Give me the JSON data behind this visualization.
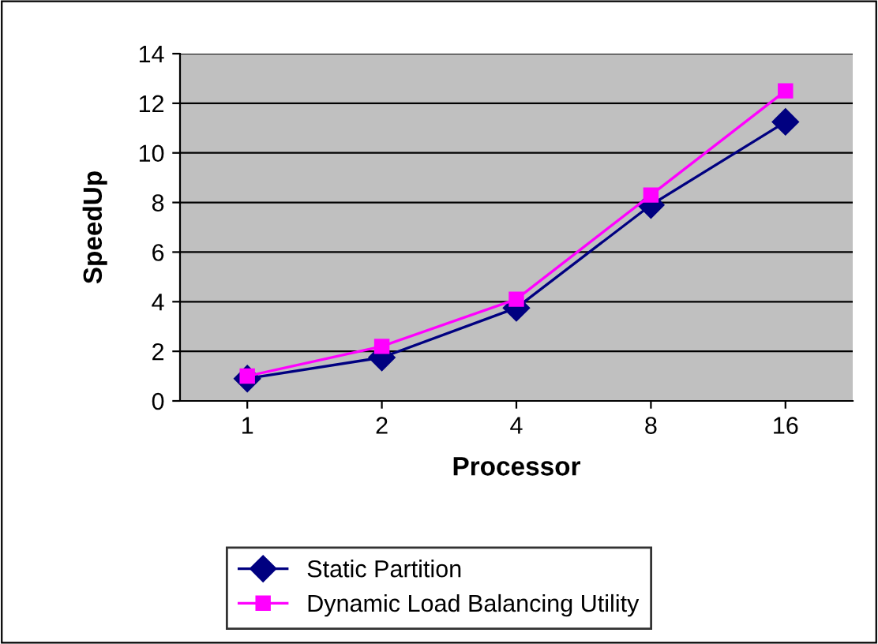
{
  "chart_data": {
    "type": "line",
    "xlabel": "Processor",
    "ylabel": "SpeedUp",
    "categories": [
      "1",
      "2",
      "4",
      "8",
      "16"
    ],
    "series": [
      {
        "name": "Static Partition",
        "color": "#000080",
        "values": [
          0.9,
          1.75,
          3.75,
          7.9,
          11.25
        ],
        "marker": "diamond"
      },
      {
        "name": "Dynamic Load Balancing Utility",
        "color": "#ff00ff",
        "values": [
          1.0,
          2.2,
          4.1,
          8.3,
          12.5
        ],
        "marker": "square"
      }
    ],
    "ylim": [
      0,
      14
    ],
    "yticks": [
      0,
      2,
      4,
      6,
      8,
      10,
      12,
      14
    ],
    "grid": "y",
    "legend": "bottom",
    "line_style": "solid"
  }
}
